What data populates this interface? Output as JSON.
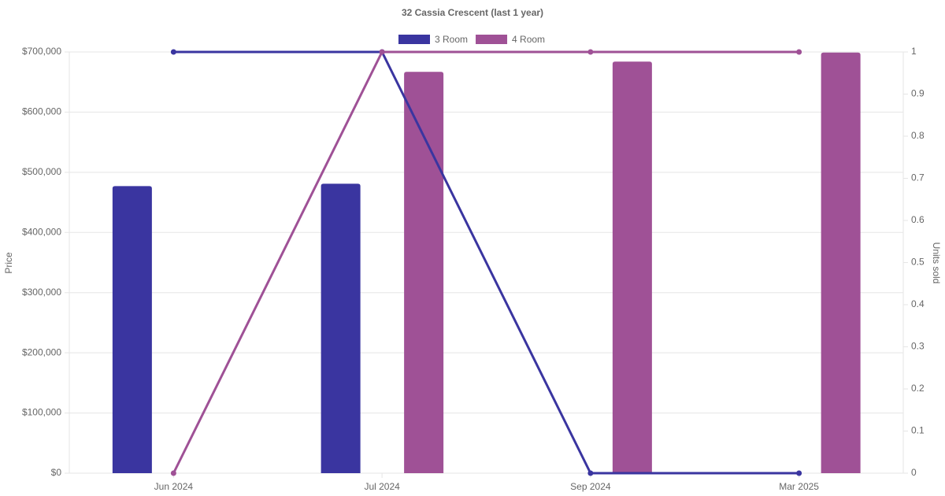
{
  "chart_data": {
    "type": "bar-line",
    "title": "32 Cassia Crescent (last 1 year)",
    "y_label": "Price",
    "y2_label": "Units sold",
    "categories": [
      "Jun 2024",
      "Jul 2024",
      "Sep 2024",
      "Mar 2025"
    ],
    "series": [
      {
        "name": "3 Room",
        "color": "#3a35a0",
        "values": [
          477000,
          481000,
          null,
          null
        ],
        "units": [
          1,
          1,
          0,
          0
        ]
      },
      {
        "name": "4 Room",
        "color": "#9f5196",
        "values": [
          null,
          667000,
          684000,
          699000
        ],
        "units": [
          0,
          1,
          1,
          1
        ]
      }
    ],
    "ylim": [
      0,
      700000
    ],
    "yticks": [
      {
        "value": 0,
        "label": "$0"
      },
      {
        "value": 100000,
        "label": "$100,000"
      },
      {
        "value": 200000,
        "label": "$200,000"
      },
      {
        "value": 300000,
        "label": "$300,000"
      },
      {
        "value": 400000,
        "label": "$400,000"
      },
      {
        "value": 500000,
        "label": "$500,000"
      },
      {
        "value": 600000,
        "label": "$600,000"
      },
      {
        "value": 700000,
        "label": "$700,000"
      }
    ],
    "y2lim": [
      0,
      1
    ],
    "y2ticks": [
      0,
      0.1,
      0.2,
      0.3,
      0.4,
      0.5,
      0.6,
      0.7,
      0.8,
      0.9,
      1
    ],
    "grid": true
  }
}
